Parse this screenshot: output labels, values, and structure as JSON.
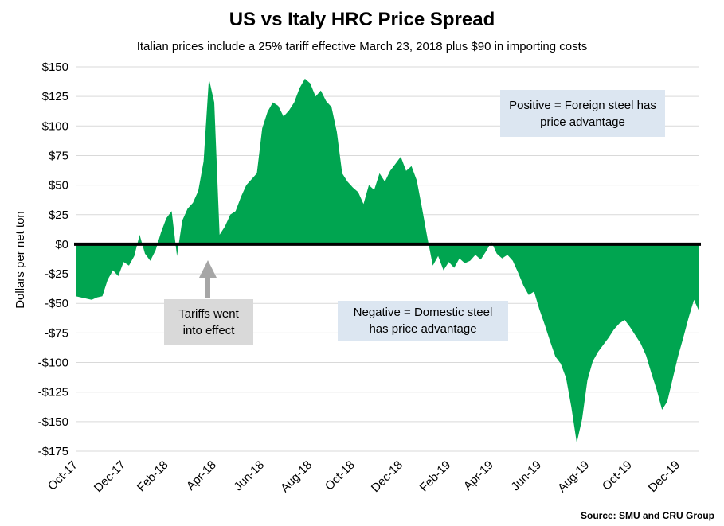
{
  "chart": {
    "title": "US vs Italy HRC Price Spread",
    "subtitle": "Italian prices include a 25% tariff effective March 23, 2018 plus $90 in importing costs",
    "ylabel": "Dollars per net ton",
    "source": "Source: SMU and CRU Group"
  },
  "annotations": {
    "positive": "Positive = Foreign steel has price advantage",
    "negative": "Negative = Domestic steel has price advantage",
    "tariff": "Tariffs went into effect"
  },
  "chart_data": {
    "type": "area",
    "title": "US vs Italy HRC Price Spread",
    "subtitle": "Italian prices include a 25% tariff effective March 23, 2018 plus $90 in importing costs",
    "ylabel": "Dollars per net ton",
    "xlabel": "",
    "series_name": "US minus Italy HRC price spread ($ per net ton)",
    "frequency": "weekly",
    "ylim": [
      -175,
      150
    ],
    "grid": true,
    "y_tick_values": [
      150,
      125,
      100,
      75,
      50,
      25,
      0,
      -25,
      -50,
      -75,
      -100,
      -125,
      -150,
      -175
    ],
    "y_tick_labels": [
      "$150",
      "$125",
      "$100",
      "$75",
      "$50",
      "$25",
      "$0",
      "-$25",
      "-$50",
      "-$75",
      "-$100",
      "-$125",
      "-$150",
      "-$175"
    ],
    "x_tick_labels": [
      "Oct-17",
      "Dec-17",
      "Feb-18",
      "Apr-18",
      "Jun-18",
      "Aug-18",
      "Oct-18",
      "Dec-18",
      "Feb-19",
      "Apr-19",
      "Jun-19",
      "Aug-19",
      "Oct-19",
      "Dec-19"
    ],
    "x_tick_indices": [
      0,
      9,
      17,
      26,
      35,
      44,
      52,
      61,
      70,
      78,
      87,
      96,
      104,
      113
    ],
    "values": [
      -44,
      -45,
      -46,
      -47,
      -45,
      -44,
      -30,
      -22,
      -27,
      -15,
      -18,
      -10,
      8,
      -8,
      -14,
      -5,
      10,
      22,
      28,
      -10,
      20,
      30,
      35,
      45,
      70,
      140,
      120,
      8,
      15,
      25,
      28,
      40,
      50,
      55,
      60,
      98,
      112,
      120,
      117,
      108,
      113,
      120,
      132,
      140,
      136,
      125,
      130,
      121,
      116,
      95,
      60,
      53,
      48,
      44,
      34,
      50,
      46,
      60,
      53,
      62,
      68,
      74,
      62,
      66,
      54,
      30,
      5,
      -18,
      -10,
      -22,
      -15,
      -20,
      -12,
      -16,
      -14,
      -9,
      -13,
      -6,
      2,
      -8,
      -12,
      -9,
      -14,
      -24,
      -35,
      -43,
      -40,
      -55,
      -68,
      -82,
      -95,
      -101,
      -113,
      -138,
      -168,
      -148,
      -115,
      -99,
      -91,
      -85,
      -79,
      -72,
      -67,
      -64,
      -70,
      -77,
      -84,
      -94,
      -109,
      -123,
      -140,
      -133,
      -114,
      -95,
      -79,
      -62,
      -47,
      -57
    ],
    "colors": {
      "area": "#00A550",
      "grid": "#D9D9D9",
      "zero_line": "#000000",
      "annotation_blue": "#DCE6F1",
      "annotation_gray": "#D9D9D9",
      "arrow": "#A6A6A6",
      "text": "#000000"
    }
  }
}
